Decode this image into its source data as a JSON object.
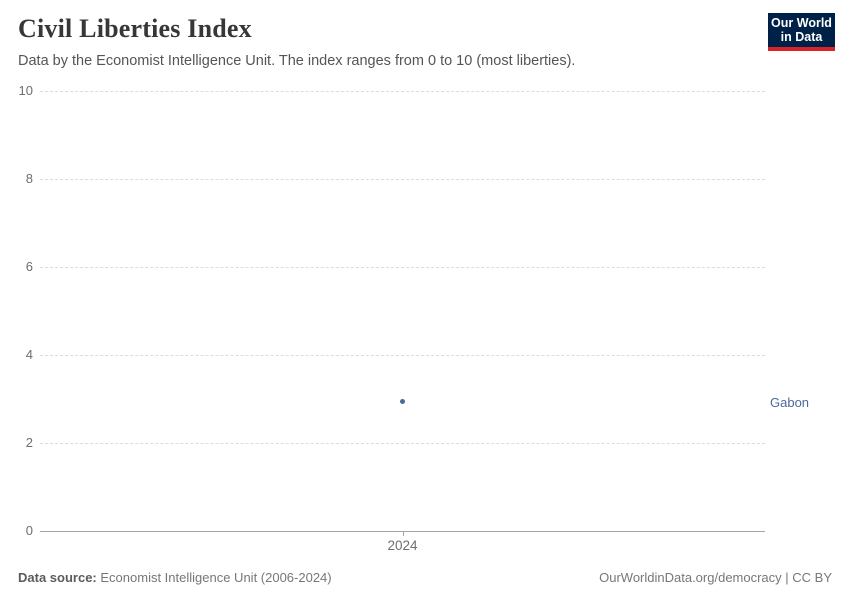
{
  "header": {
    "title": "Civil Liberties Index",
    "subtitle": "Data by the Economist Intelligence Unit. The index ranges from 0 to 10 (most liberties).",
    "logo_line1": "Our World",
    "logo_line2": "in Data"
  },
  "chart_data": {
    "type": "scatter",
    "title": "Civil Liberties Index",
    "x": [
      2024
    ],
    "xticks": [
      2024
    ],
    "series": [
      {
        "name": "Gabon",
        "values": [
          2.94
        ]
      }
    ],
    "ylim": [
      0,
      10
    ],
    "yticks": [
      0,
      2,
      4,
      6,
      8,
      10
    ],
    "grid": "horizontal-dashed",
    "legend_position": "entity-label-right",
    "point_color": "#4c6a9c"
  },
  "colors": {
    "accent_blue": "#4c6a9c",
    "logo_navy": "#002147",
    "logo_red": "#d8232a",
    "title_text": "#383636",
    "axis_text": "#6e6e6e",
    "gridline": "#dcdcdc"
  },
  "footer": {
    "source_label": "Data source:",
    "source_value": "Economist Intelligence Unit (2006-2024)",
    "credit": "OurWorldinData.org/democracy | CC BY"
  }
}
